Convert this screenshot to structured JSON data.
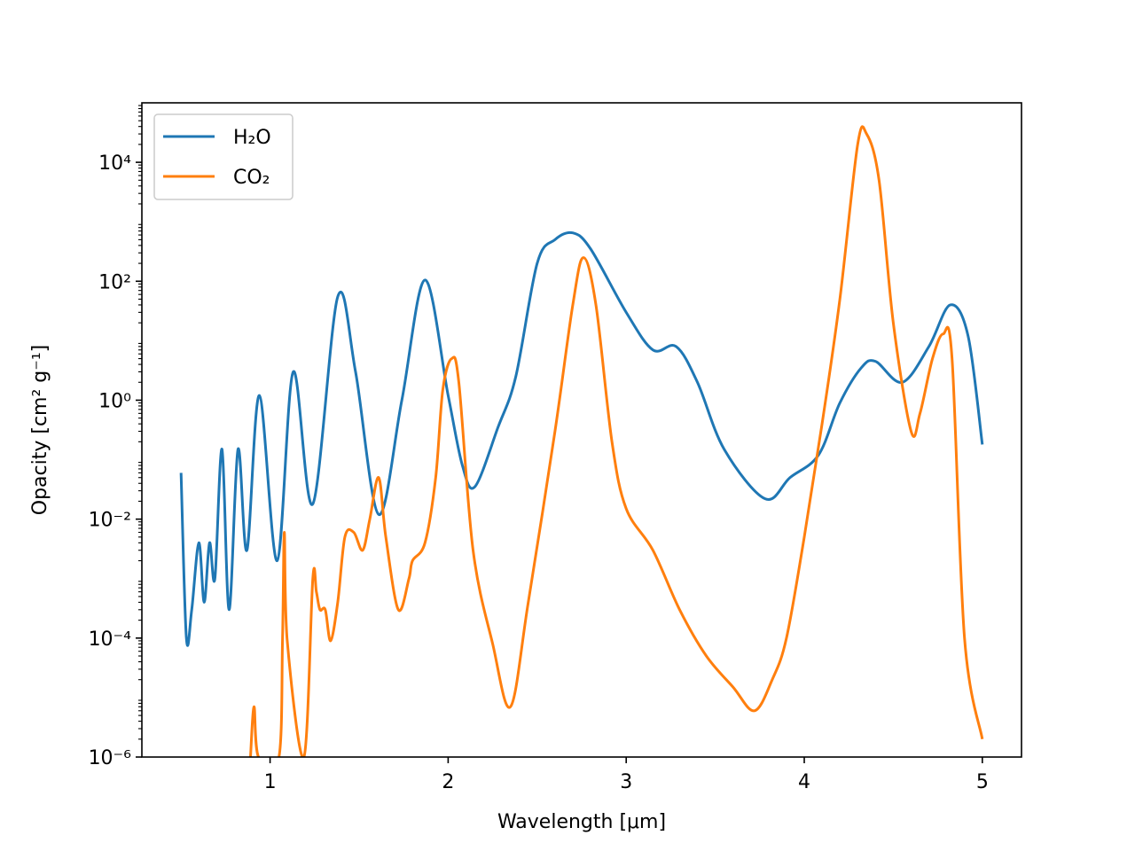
{
  "chart_data": {
    "type": "line",
    "title": "",
    "xlabel": "Wavelength [μm]",
    "ylabel": "Opacity [cm² g⁻¹]",
    "yscale": "log",
    "xlim": [
      0.28,
      5.22
    ],
    "ylim": [
      1e-06,
      100000.0
    ],
    "xticks": [
      1,
      2,
      3,
      4,
      5
    ],
    "xtick_labels": [
      "1",
      "2",
      "3",
      "4",
      "5"
    ],
    "yticks": [
      1e-06,
      0.0001,
      0.01,
      1,
      100,
      10000
    ],
    "ytick_labels": [
      "10⁻⁶",
      "10⁻⁴",
      "10⁻²",
      "10⁰",
      "10²",
      "10⁴"
    ],
    "grid": false,
    "legend_position": "upper-left",
    "series": [
      {
        "name": "H₂O",
        "color": "#1f77b4",
        "x": [
          0.5,
          0.53,
          0.56,
          0.6,
          0.63,
          0.66,
          0.69,
          0.73,
          0.77,
          0.82,
          0.87,
          0.94,
          1.04,
          1.13,
          1.24,
          1.38,
          1.48,
          1.61,
          1.74,
          1.87,
          2.0,
          2.08,
          2.15,
          2.28,
          2.38,
          2.5,
          2.6,
          2.7,
          2.8,
          3.0,
          3.15,
          3.28,
          3.4,
          3.55,
          3.78,
          3.92,
          4.08,
          4.2,
          4.32,
          4.4,
          4.55,
          4.7,
          4.82,
          4.92,
          5.0
        ],
        "values": [
          0.06,
          0.0001,
          0.0003,
          0.004,
          0.0004,
          0.004,
          0.001,
          0.15,
          0.0003,
          0.15,
          0.003,
          1.2,
          0.002,
          3.0,
          0.018,
          55,
          3.0,
          0.012,
          1.0,
          105,
          1.2,
          0.08,
          0.035,
          0.35,
          2.5,
          200,
          500,
          650,
          350,
          30,
          7,
          8,
          2,
          0.15,
          0.022,
          0.05,
          0.12,
          0.9,
          3.5,
          4.5,
          2.0,
          8,
          40,
          12,
          0.18
        ]
      },
      {
        "name": "CO₂",
        "color": "#ff7f0e",
        "x": [
          0.89,
          0.91,
          0.935,
          1.05,
          1.07,
          1.08,
          1.095,
          1.19,
          1.24,
          1.26,
          1.28,
          1.31,
          1.34,
          1.38,
          1.42,
          1.47,
          1.52,
          1.56,
          1.61,
          1.65,
          1.72,
          1.78,
          1.8,
          1.87,
          1.93,
          1.97,
          2.02,
          2.06,
          2.14,
          2.25,
          2.35,
          2.45,
          2.6,
          2.7,
          2.76,
          2.83,
          2.92,
          3.0,
          3.15,
          3.3,
          3.45,
          3.6,
          3.72,
          3.82,
          3.9,
          4.0,
          4.1,
          4.2,
          4.3,
          4.35,
          4.42,
          4.5,
          4.6,
          4.65,
          4.72,
          4.78,
          4.83,
          4.9,
          5.0
        ],
        "values": [
          1e-06,
          7e-06,
          1e-06,
          1e-06,
          0.0001,
          0.006,
          0.0001,
          1e-06,
          0.001,
          0.0006,
          0.0003,
          0.0003,
          9e-05,
          0.0004,
          0.005,
          0.006,
          0.003,
          0.01,
          0.05,
          0.005,
          0.0003,
          0.001,
          0.002,
          0.004,
          0.05,
          1.5,
          5.0,
          2.0,
          0.003,
          8e-05,
          7e-06,
          0.0004,
          0.3,
          40,
          250,
          40,
          0.2,
          0.015,
          0.003,
          0.0003,
          5e-05,
          1.5e-05,
          6e-06,
          2e-05,
          0.0001,
          0.005,
          0.4,
          50,
          20000,
          30000,
          5000,
          20,
          0.3,
          0.6,
          5,
          13,
          5,
          0.0001,
          2e-06
        ]
      }
    ]
  }
}
